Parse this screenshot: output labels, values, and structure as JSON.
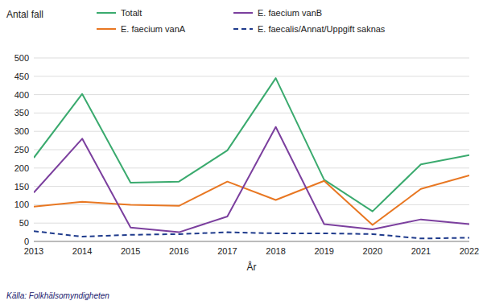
{
  "chart_data": {
    "type": "line",
    "x": [
      2013,
      2014,
      2015,
      2016,
      2017,
      2018,
      2019,
      2020,
      2021,
      2022
    ],
    "xlim": [
      2013,
      2022
    ],
    "xticks": [
      2013,
      2014,
      2015,
      2016,
      2017,
      2018,
      2019,
      2020,
      2021,
      2022
    ],
    "ylim": [
      0,
      500
    ],
    "yticks": [
      0,
      50,
      100,
      150,
      200,
      250,
      300,
      350,
      400,
      450,
      500
    ],
    "x_label": "År",
    "y_label": "Antal fall",
    "source": "Källa: Folkhälsomyndigheten",
    "grid": true,
    "legend": "top",
    "series": [
      {
        "name": "Totalt",
        "color": "#3aaa6e",
        "line_style": "solid",
        "values": [
          228,
          402,
          160,
          163,
          248,
          445,
          168,
          82,
          210,
          235
        ]
      },
      {
        "name": "E. faecium vanA",
        "color": "#e87722",
        "line_style": "solid",
        "values": [
          95,
          108,
          100,
          97,
          163,
          113,
          165,
          45,
          143,
          180
        ]
      },
      {
        "name": "E. faecium vanB",
        "color": "#7b3f9e",
        "line_style": "solid",
        "values": [
          133,
          280,
          38,
          25,
          68,
          312,
          47,
          33,
          60,
          47
        ]
      },
      {
        "name": "E. faecalis/Annat/Uppgift saknas",
        "color": "#1f3b8c",
        "line_style": "dashed",
        "values": [
          28,
          13,
          18,
          20,
          25,
          22,
          22,
          20,
          8,
          10
        ]
      }
    ]
  }
}
